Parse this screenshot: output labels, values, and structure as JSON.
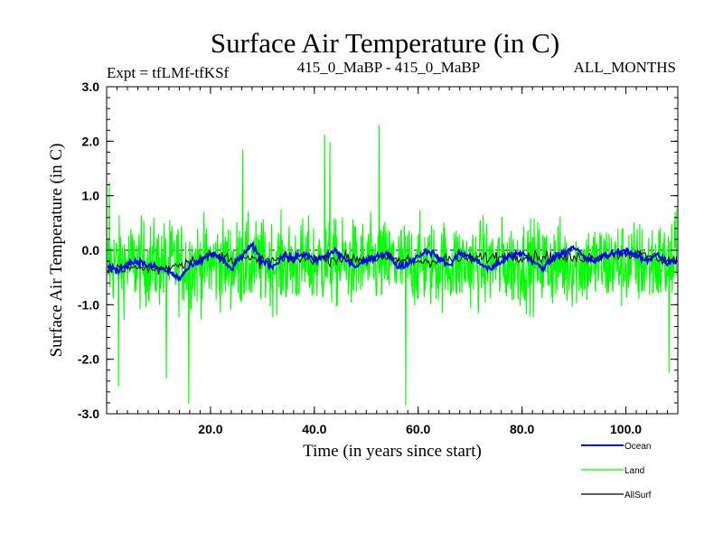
{
  "chart_data": {
    "type": "line",
    "title": "Surface Air Temperature (in C)",
    "subtitle_left": "Expt = tfLMf-tfKSf",
    "subtitle_center": "415_0_MaBP - 415_0_MaBP",
    "subtitle_right": "ALL_MONTHS",
    "xlabel": "Time (in years since start)",
    "ylabel": "Surface Air Temperature (in C)",
    "xlim": [
      0,
      110
    ],
    "ylim": [
      -3.0,
      3.0
    ],
    "x_ticks": [
      20,
      40,
      60,
      80,
      100
    ],
    "x_tick_labels": [
      "20.0",
      "40.0",
      "60.0",
      "80.0",
      "100.0"
    ],
    "y_ticks": [
      3,
      2,
      1,
      0,
      -1,
      -2,
      -3
    ],
    "y_tick_labels": [
      "3.0",
      "2.0",
      "1.0",
      "0.0",
      "-1.0",
      "-2.0",
      "-3.0"
    ],
    "reference_line": 0.0,
    "series": [
      {
        "name": "Land",
        "color": "#00ff00",
        "sampling": "monthly (approximate digitization of high-frequency noise)",
        "mean_approx": -0.25,
        "min_approx": -2.85,
        "max_approx": 2.3,
        "notable_extremes": [
          {
            "x": 0.5,
            "y": 1.25
          },
          {
            "x": 2.3,
            "y": -2.5
          },
          {
            "x": 11.5,
            "y": -2.35
          },
          {
            "x": 15.8,
            "y": -2.82
          },
          {
            "x": 26.2,
            "y": 1.85
          },
          {
            "x": 42.0,
            "y": 2.12
          },
          {
            "x": 43.0,
            "y": 1.98
          },
          {
            "x": 52.5,
            "y": 2.3
          },
          {
            "x": 57.6,
            "y": -2.85
          },
          {
            "x": 108.3,
            "y": -2.25
          },
          {
            "x": 109.5,
            "y": 0.7
          }
        ]
      },
      {
        "name": "Ocean",
        "color": "#0000ff",
        "x": [
          0,
          2,
          4,
          6,
          8,
          10,
          12,
          14,
          16,
          18,
          20,
          22,
          24,
          26,
          28,
          30,
          32,
          34,
          36,
          38,
          40,
          42,
          44,
          46,
          48,
          50,
          52,
          54,
          56,
          58,
          60,
          62,
          64,
          66,
          68,
          70,
          72,
          74,
          76,
          78,
          80,
          82,
          84,
          86,
          88,
          90,
          92,
          94,
          96,
          98,
          100,
          102,
          104,
          106,
          108,
          110
        ],
        "y": [
          -0.3,
          -0.38,
          -0.25,
          -0.2,
          -0.28,
          -0.33,
          -0.4,
          -0.52,
          -0.3,
          -0.22,
          -0.05,
          -0.15,
          -0.35,
          -0.1,
          0.08,
          -0.2,
          -0.3,
          -0.1,
          -0.15,
          -0.05,
          -0.2,
          -0.12,
          0.0,
          -0.18,
          -0.3,
          -0.2,
          -0.1,
          -0.05,
          -0.3,
          -0.25,
          -0.1,
          0.0,
          -0.15,
          -0.28,
          -0.05,
          -0.12,
          -0.25,
          -0.35,
          -0.2,
          -0.1,
          -0.05,
          -0.2,
          -0.35,
          -0.12,
          -0.05,
          0.08,
          -0.15,
          -0.2,
          -0.1,
          -0.05,
          0.0,
          -0.1,
          -0.2,
          -0.05,
          -0.25,
          -0.2
        ]
      },
      {
        "name": "AllSurf",
        "color": "#000000",
        "note": "mostly hidden beneath the Ocean and Land lines",
        "x": [
          0,
          10,
          20,
          30,
          40,
          50,
          60,
          70,
          80,
          90,
          100,
          110
        ],
        "y": [
          -0.3,
          -0.35,
          -0.1,
          -0.2,
          -0.15,
          -0.15,
          -0.2,
          -0.15,
          -0.1,
          -0.15,
          -0.05,
          -0.2
        ]
      }
    ],
    "legend": [
      "Ocean",
      "Land",
      "AllSurf"
    ],
    "legend_position": "bottom-right"
  }
}
